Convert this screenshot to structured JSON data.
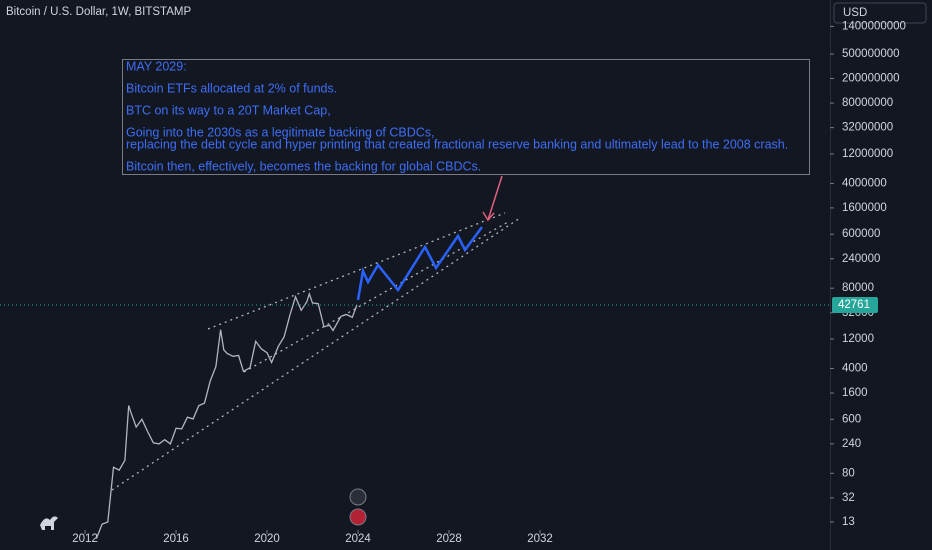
{
  "header": {
    "symbol": "Bitcoin / U.S. Dollar, 1W, BITSTAMP",
    "currency": "USD"
  },
  "chart_data": {
    "type": "line",
    "log_scale": true,
    "color": "#b2b5be",
    "x": [
      2012.5,
      2012.75,
      2013.0,
      2013.25,
      2013.5,
      2013.75,
      2013.92,
      2014.0,
      2014.25,
      2014.5,
      2014.75,
      2015.0,
      2015.25,
      2015.5,
      2015.75,
      2016.0,
      2016.25,
      2016.5,
      2016.75,
      2017.0,
      2017.25,
      2017.5,
      2017.75,
      2017.96,
      2018.1,
      2018.25,
      2018.5,
      2018.75,
      2018.96,
      2019.25,
      2019.5,
      2019.75,
      2020.0,
      2020.2,
      2020.5,
      2020.75,
      2021.0,
      2021.25,
      2021.5,
      2021.75,
      2021.86,
      2022.0,
      2022.25,
      2022.5,
      2022.75,
      2022.9,
      2023.25,
      2023.5,
      2023.75,
      2023.95
    ],
    "values": [
      7,
      12,
      13,
      100,
      90,
      130,
      1000,
      800,
      450,
      600,
      380,
      250,
      240,
      280,
      240,
      430,
      420,
      650,
      610,
      1000,
      1100,
      2500,
      4300,
      17000,
      8000,
      7000,
      6300,
      6500,
      3600,
      4100,
      11000,
      8300,
      7200,
      5000,
      9200,
      13000,
      29000,
      58000,
      35000,
      48000,
      65000,
      46000,
      45000,
      19000,
      20000,
      16500,
      28000,
      30000,
      27000,
      42761
    ],
    "last_price": 42761,
    "xlim": [
      2008.26,
      2044.75
    ],
    "xticks": [
      2012,
      2016,
      2020,
      2024,
      2028,
      2032
    ],
    "ylim": [
      4.57,
      3750000000
    ],
    "yticks": [
      1400000000,
      500000000,
      200000000,
      80000000,
      32000000,
      12000000,
      4000000,
      1600000,
      600000,
      240000,
      80000,
      32000,
      12000,
      4000,
      1600,
      600,
      240,
      80,
      32,
      13
    ],
    "annotation": [
      "MAY 2029:",
      "Bitcoin ETFs allocated at 2% of funds.",
      "BTC on its way to a 20T Market Cap,",
      "Going into the 2030s as a legitimate backing of CBDCs,",
      "replacing the debt cycle and hyper printing that created fractional reserve banking and ultimately lead to the 2008 crash.",
      "Bitcoin then, effectively, becomes the backing for global CBDCs."
    ]
  }
}
